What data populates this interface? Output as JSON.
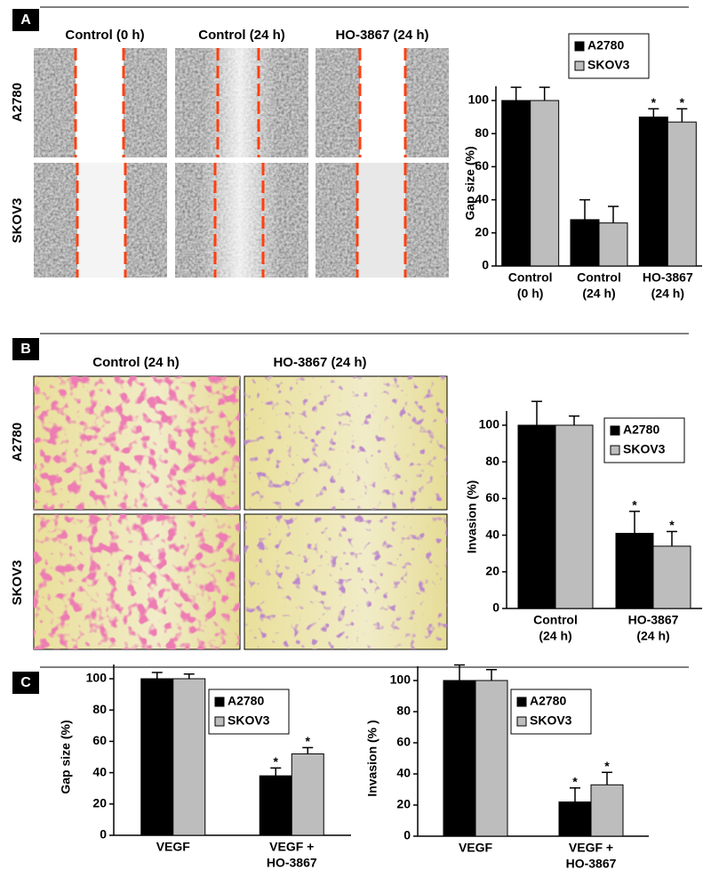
{
  "panels": [
    {
      "label": "A",
      "column_headers": [
        "Control (0 h)",
        "Control (24 h)",
        "HO-3867 (24 h)"
      ],
      "row_labels": [
        "A2780",
        "SKOV3"
      ]
    },
    {
      "label": "B",
      "column_headers": [
        "Control (24 h)",
        "HO-3867 (24 h)"
      ],
      "row_labels": [
        "A2780",
        "SKOV3"
      ]
    },
    {
      "label": "C"
    }
  ],
  "chart_data": [
    {
      "type": "bar",
      "ylabel": "Gap size (%)",
      "categories": [
        [
          "Control",
          "(0 h)"
        ],
        [
          "Control",
          "(24 h)"
        ],
        [
          "HO-3867",
          "(24 h)"
        ]
      ],
      "series": [
        {
          "name": "A2780",
          "color": "#000000",
          "values": [
            100,
            28,
            90
          ],
          "errors": [
            8,
            12,
            5
          ],
          "annotations": [
            null,
            null,
            "*"
          ]
        },
        {
          "name": "SKOV3",
          "color": "#bdbdbd",
          "values": [
            100,
            26,
            87
          ],
          "errors": [
            8,
            10,
            8
          ],
          "annotations": [
            null,
            null,
            "*"
          ]
        }
      ],
      "ylim": [
        0,
        100
      ],
      "yticks": [
        0,
        20,
        40,
        60,
        80,
        100
      ],
      "legend": "upper right"
    },
    {
      "type": "bar",
      "ylabel": "Invasion (%)",
      "categories": [
        [
          "Control",
          "(24 h)"
        ],
        [
          "HO-3867",
          "(24 h)"
        ]
      ],
      "series": [
        {
          "name": "A2780",
          "color": "#000000",
          "values": [
            100,
            41
          ],
          "errors": [
            13,
            12
          ],
          "annotations": [
            null,
            "*"
          ]
        },
        {
          "name": "SKOV3",
          "color": "#bdbdbd",
          "values": [
            100,
            34
          ],
          "errors": [
            5,
            8
          ],
          "annotations": [
            null,
            "*"
          ]
        }
      ],
      "ylim": [
        0,
        100
      ],
      "yticks": [
        0,
        20,
        40,
        60,
        80,
        100
      ],
      "legend": "upper right"
    },
    {
      "type": "bar",
      "ylabel": "Gap size (%)",
      "categories": [
        [
          "VEGF"
        ],
        [
          "VEGF +",
          "HO-3867"
        ]
      ],
      "series": [
        {
          "name": "A2780",
          "color": "#000000",
          "values": [
            100,
            38
          ],
          "errors": [
            4,
            5
          ],
          "annotations": [
            null,
            "*"
          ]
        },
        {
          "name": "SKOV3",
          "color": "#bdbdbd",
          "values": [
            100,
            52
          ],
          "errors": [
            3,
            4
          ],
          "annotations": [
            null,
            "*"
          ]
        }
      ],
      "ylim": [
        0,
        100
      ],
      "yticks": [
        0,
        20,
        40,
        60,
        80,
        100
      ],
      "legend": "upper right"
    },
    {
      "type": "bar",
      "ylabel": "Invasion (% )",
      "categories": [
        [
          "VEGF"
        ],
        [
          "VEGF +",
          "HO-3867"
        ]
      ],
      "series": [
        {
          "name": "A2780",
          "color": "#000000",
          "values": [
            100,
            22
          ],
          "errors": [
            10,
            9
          ],
          "annotations": [
            null,
            "*"
          ]
        },
        {
          "name": "SKOV3",
          "color": "#bdbdbd",
          "values": [
            100,
            33
          ],
          "errors": [
            7,
            8
          ],
          "annotations": [
            null,
            "*"
          ]
        }
      ],
      "ylim": [
        0,
        100
      ],
      "yticks": [
        0,
        20,
        40,
        60,
        80,
        100
      ],
      "legend": "upper right"
    }
  ]
}
